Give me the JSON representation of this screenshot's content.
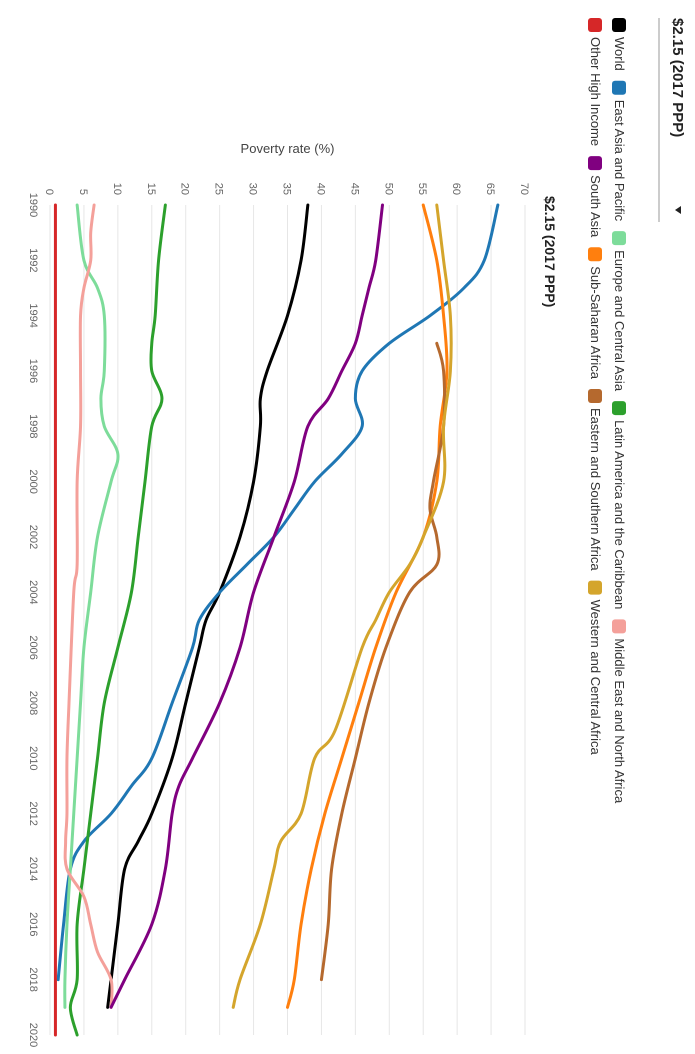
{
  "dropdown": {
    "selected": "$2.15 (2017 PPP)",
    "arrow_icon": "caret-down-icon"
  },
  "legend": {
    "items": [
      {
        "label": "World",
        "color": "#000000"
      },
      {
        "label": "East Asia and Pacific",
        "color": "#1f77b4"
      },
      {
        "label": "Europe and Central Asia",
        "color": "#7ddc9a"
      },
      {
        "label": "Latin America and the Caribbean",
        "color": "#2ca02c"
      },
      {
        "label": "Middle East and North Africa",
        "color": "#f4a09a"
      },
      {
        "label": "Other High Income",
        "color": "#d62728"
      },
      {
        "label": "South Asia",
        "color": "#800080"
      },
      {
        "label": "Sub-Saharan Africa",
        "color": "#ff7f0e"
      },
      {
        "label": "Eastern and Southern Africa",
        "color": "#b5692e"
      },
      {
        "label": "Western and Central Africa",
        "color": "#d4a52c"
      }
    ]
  },
  "chart_data": {
    "type": "line",
    "title": "$2.15 (2017 PPP)",
    "xlabel": "",
    "ylabel": "Poverty rate (%)",
    "xlim": [
      1990,
      2020
    ],
    "ylim": [
      0,
      70
    ],
    "x_ticks": [
      1990,
      1992,
      1994,
      1996,
      1998,
      2000,
      2002,
      2004,
      2006,
      2008,
      2010,
      2012,
      2014,
      2016,
      2018,
      2020
    ],
    "y_ticks": [
      0,
      5,
      10,
      15,
      20,
      25,
      30,
      35,
      40,
      45,
      50,
      55,
      60,
      65,
      70
    ],
    "grid": true,
    "legend_position": "top",
    "series": [
      {
        "name": "World",
        "color": "#000000",
        "points": [
          [
            1990,
            38
          ],
          [
            1992,
            37
          ],
          [
            1994,
            35
          ],
          [
            1996,
            32
          ],
          [
            1997,
            31
          ],
          [
            1998,
            31
          ],
          [
            2000,
            30
          ],
          [
            2002,
            28
          ],
          [
            2004,
            25
          ],
          [
            2005,
            23
          ],
          [
            2006,
            22
          ],
          [
            2008,
            20
          ],
          [
            2010,
            18
          ],
          [
            2012,
            15
          ],
          [
            2013,
            13
          ],
          [
            2014,
            11
          ],
          [
            2016,
            10
          ],
          [
            2018,
            9
          ],
          [
            2019,
            8.5
          ]
        ]
      },
      {
        "name": "East Asia and Pacific",
        "color": "#1f77b4",
        "points": [
          [
            1990,
            66
          ],
          [
            1992,
            64
          ],
          [
            1993,
            61
          ],
          [
            1994,
            56
          ],
          [
            1995,
            50
          ],
          [
            1996,
            46
          ],
          [
            1997,
            45
          ],
          [
            1998,
            46
          ],
          [
            1999,
            43
          ],
          [
            2000,
            39
          ],
          [
            2001,
            36
          ],
          [
            2002,
            33
          ],
          [
            2003,
            29
          ],
          [
            2004,
            25
          ],
          [
            2005,
            22
          ],
          [
            2006,
            21
          ],
          [
            2008,
            18
          ],
          [
            2010,
            15
          ],
          [
            2011,
            12
          ],
          [
            2012,
            9
          ],
          [
            2013,
            5
          ],
          [
            2014,
            3
          ],
          [
            2016,
            2
          ],
          [
            2018,
            1.2
          ]
        ]
      },
      {
        "name": "Europe and Central Asia",
        "color": "#7ddc9a",
        "points": [
          [
            1990,
            4
          ],
          [
            1992,
            5
          ],
          [
            1993,
            7
          ],
          [
            1994,
            8
          ],
          [
            1996,
            8
          ],
          [
            1997,
            7.5
          ],
          [
            1998,
            8
          ],
          [
            1999,
            10
          ],
          [
            2000,
            9
          ],
          [
            2002,
            7
          ],
          [
            2004,
            6
          ],
          [
            2006,
            5
          ],
          [
            2008,
            4.5
          ],
          [
            2010,
            4
          ],
          [
            2012,
            3.5
          ],
          [
            2014,
            3
          ],
          [
            2016,
            2.5
          ],
          [
            2018,
            2.2
          ],
          [
            2019,
            2.2
          ]
        ]
      },
      {
        "name": "Latin America and the Caribbean",
        "color": "#2ca02c",
        "points": [
          [
            1990,
            17
          ],
          [
            1992,
            16
          ],
          [
            1994,
            15.5
          ],
          [
            1995,
            15
          ],
          [
            1996,
            15
          ],
          [
            1997,
            16.5
          ],
          [
            1998,
            15
          ],
          [
            2000,
            14
          ],
          [
            2002,
            13
          ],
          [
            2004,
            12
          ],
          [
            2006,
            10
          ],
          [
            2008,
            8
          ],
          [
            2010,
            7
          ],
          [
            2012,
            6
          ],
          [
            2014,
            5
          ],
          [
            2016,
            4
          ],
          [
            2018,
            4
          ],
          [
            2019,
            3
          ],
          [
            2020,
            4
          ]
        ]
      },
      {
        "name": "Middle East and North Africa",
        "color": "#f4a09a",
        "points": [
          [
            1990,
            6.5
          ],
          [
            1991,
            6
          ],
          [
            1992,
            6
          ],
          [
            1993,
            5
          ],
          [
            1994,
            4.5
          ],
          [
            1996,
            4.5
          ],
          [
            1998,
            4.5
          ],
          [
            2000,
            4
          ],
          [
            2003,
            4
          ],
          [
            2004,
            3.5
          ],
          [
            2008,
            2.8
          ],
          [
            2010,
            2.5
          ],
          [
            2012,
            2.5
          ],
          [
            2013,
            2.3
          ],
          [
            2014,
            2.5
          ],
          [
            2015,
            5
          ],
          [
            2016,
            6
          ],
          [
            2017,
            7
          ],
          [
            2018,
            9
          ],
          [
            2019,
            9
          ]
        ]
      },
      {
        "name": "Other High Income",
        "color": "#d62728",
        "points": [
          [
            1990,
            0.8
          ],
          [
            1995,
            0.8
          ],
          [
            2000,
            0.8
          ],
          [
            2005,
            0.8
          ],
          [
            2010,
            0.8
          ],
          [
            2015,
            0.8
          ],
          [
            2020,
            0.8
          ]
        ]
      },
      {
        "name": "South Asia",
        "color": "#800080",
        "points": [
          [
            1990,
            49
          ],
          [
            1992,
            48
          ],
          [
            1993,
            47
          ],
          [
            1994,
            46
          ],
          [
            1995,
            45
          ],
          [
            1996,
            43
          ],
          [
            1997,
            41
          ],
          [
            1998,
            38
          ],
          [
            2000,
            36
          ],
          [
            2002,
            33
          ],
          [
            2004,
            30
          ],
          [
            2006,
            28
          ],
          [
            2008,
            25
          ],
          [
            2010,
            21
          ],
          [
            2011,
            19
          ],
          [
            2012,
            18
          ],
          [
            2014,
            17
          ],
          [
            2016,
            15
          ],
          [
            2018,
            11
          ],
          [
            2019,
            9
          ]
        ]
      },
      {
        "name": "Sub-Saharan Africa",
        "color": "#ff7f0e",
        "points": [
          [
            1990,
            55
          ],
          [
            1992,
            57
          ],
          [
            1994,
            58
          ],
          [
            1996,
            58.5
          ],
          [
            1998,
            57.5
          ],
          [
            2000,
            57
          ],
          [
            2002,
            55
          ],
          [
            2004,
            51
          ],
          [
            2006,
            48
          ],
          [
            2008,
            45.5
          ],
          [
            2010,
            43
          ],
          [
            2012,
            40.5
          ],
          [
            2014,
            38.5
          ],
          [
            2016,
            37
          ],
          [
            2018,
            36
          ],
          [
            2019,
            35
          ]
        ]
      },
      {
        "name": "Eastern and Southern Africa",
        "color": "#b5692e",
        "points": [
          [
            1995,
            57
          ],
          [
            1996,
            58
          ],
          [
            1998,
            58
          ],
          [
            2000,
            56.5
          ],
          [
            2001,
            56
          ],
          [
            2002,
            57
          ],
          [
            2003,
            57
          ],
          [
            2004,
            53
          ],
          [
            2006,
            49.5
          ],
          [
            2008,
            47
          ],
          [
            2010,
            45
          ],
          [
            2012,
            43
          ],
          [
            2014,
            41.5
          ],
          [
            2016,
            41
          ],
          [
            2018,
            40
          ]
        ]
      },
      {
        "name": "Western and Central Africa",
        "color": "#d4a52c",
        "points": [
          [
            1990,
            57
          ],
          [
            1992,
            58
          ],
          [
            1994,
            59
          ],
          [
            1996,
            59
          ],
          [
            1998,
            58
          ],
          [
            2000,
            58
          ],
          [
            2002,
            55
          ],
          [
            2003,
            53
          ],
          [
            2004,
            50
          ],
          [
            2005,
            48
          ],
          [
            2006,
            46
          ],
          [
            2009,
            42
          ],
          [
            2010,
            39
          ],
          [
            2012,
            37
          ],
          [
            2013,
            34
          ],
          [
            2014,
            33
          ],
          [
            2016,
            31
          ],
          [
            2018,
            28
          ],
          [
            2019,
            27
          ]
        ]
      }
    ]
  }
}
